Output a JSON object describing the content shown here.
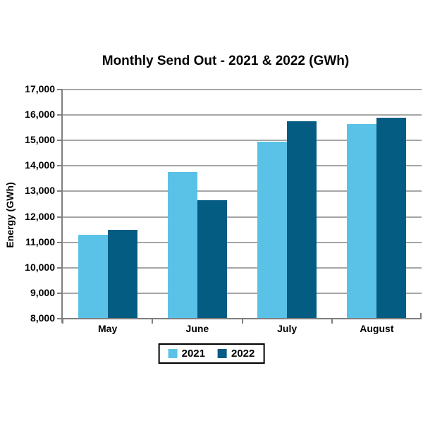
{
  "chart_data": {
    "type": "bar",
    "title": "Monthly Send Out - 2021 & 2022 (GWh)",
    "ylabel": "Energy (GWh)",
    "xlabel": "",
    "categories": [
      "May",
      "June",
      "July",
      "August"
    ],
    "series": [
      {
        "name": "2021",
        "color": "#5BC2E7",
        "values": [
          11300,
          13750,
          14950,
          15650
        ]
      },
      {
        "name": "2022",
        "color": "#055C83",
        "values": [
          11500,
          12650,
          15750,
          15900
        ]
      }
    ],
    "ylim": [
      8000,
      17000
    ],
    "ytick_step": 1000,
    "yticks": [
      {
        "value": 17000,
        "label": "17,000"
      },
      {
        "value": 16000,
        "label": "16,000"
      },
      {
        "value": 15000,
        "label": "15,000"
      },
      {
        "value": 14000,
        "label": "14,000"
      },
      {
        "value": 13000,
        "label": "13,000"
      },
      {
        "value": 12000,
        "label": "12,000"
      },
      {
        "value": 11000,
        "label": "11,000"
      },
      {
        "value": 10000,
        "label": "10,000"
      },
      {
        "value": 9000,
        "label": "9,000"
      },
      {
        "value": 8000,
        "label": "8,000"
      }
    ],
    "grid": true,
    "legend_position": "bottom",
    "colors": {
      "background": "#FFFFFF",
      "gridline": "#A6A6A6",
      "axis": "#7F7F7F",
      "text": "#000000"
    }
  }
}
